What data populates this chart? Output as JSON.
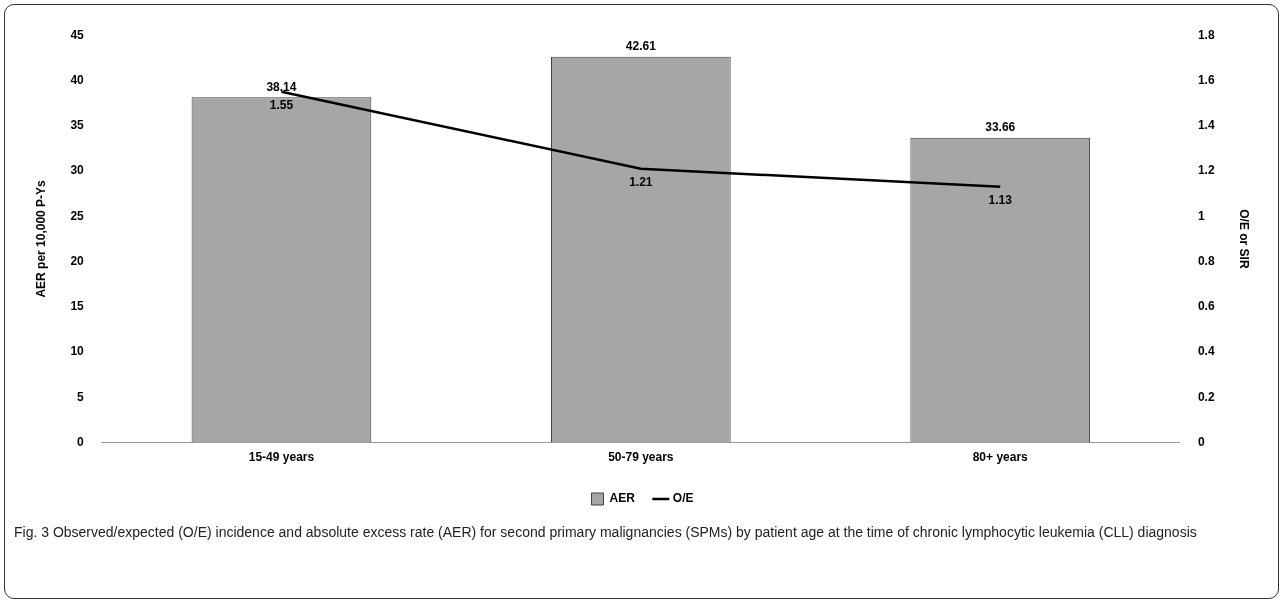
{
  "chart_data": {
    "type": "bar",
    "categories": [
      "15-49 years",
      "50-79 years",
      "80+ years"
    ],
    "series": [
      {
        "name": "AER",
        "color": "#a6a6a6",
        "values": [
          38.14,
          42.61,
          33.66
        ]
      },
      {
        "name": "O/E",
        "type": "line",
        "axis": "y2",
        "color": "#000000",
        "values": [
          1.55,
          1.21,
          1.13
        ]
      }
    ],
    "ylabel": "AER per 10,000 P-Ys",
    "y2label": "O/E or SIR",
    "ylim": [
      0,
      45
    ],
    "yticks": [
      0,
      5,
      10,
      15,
      20,
      25,
      30,
      35,
      40,
      45
    ],
    "y2lim": [
      0,
      1.8
    ],
    "y2ticks": [
      0,
      0.2,
      0.4,
      0.6,
      0.8,
      1,
      1.2,
      1.4,
      1.6,
      1.8
    ],
    "data_labels": true,
    "grid": false,
    "legend": "bottom",
    "marker": "none",
    "annotations": [
      "Fig. 3 Observed/expected (O/E) incidence and absolute excess rate (AER) for second primary malignancies (SPMs) by patient age at the time of chronic lymphocytic leukemia (CLL) diagnosis"
    ]
  }
}
